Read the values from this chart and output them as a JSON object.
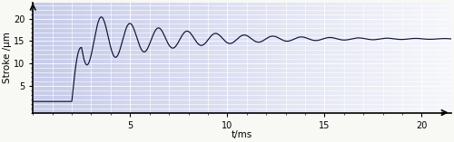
{
  "title": "",
  "xlabel": "t/ms",
  "ylabel": "Stroke /μm",
  "xlim": [
    0,
    21.5
  ],
  "ylim": [
    -1,
    23.5
  ],
  "xticks": [
    5,
    10,
    15,
    20
  ],
  "yticks": [
    5,
    10,
    15,
    20
  ],
  "bg_color_left": "#c8cce8",
  "bg_color_right": "#ffffff",
  "line_color": "#111133",
  "step_time": 2.0,
  "steady_state": 15.5,
  "initial_value": 1.5,
  "damping_coeff": 0.055,
  "frequency_hz": 0.68,
  "amplitude": 7.0,
  "phase": 0.25,
  "rise_time": 0.5,
  "grid_color": "#ffffff",
  "grid_alpha": 0.85,
  "figsize": [
    5.0,
    1.57
  ],
  "dpi": 100
}
